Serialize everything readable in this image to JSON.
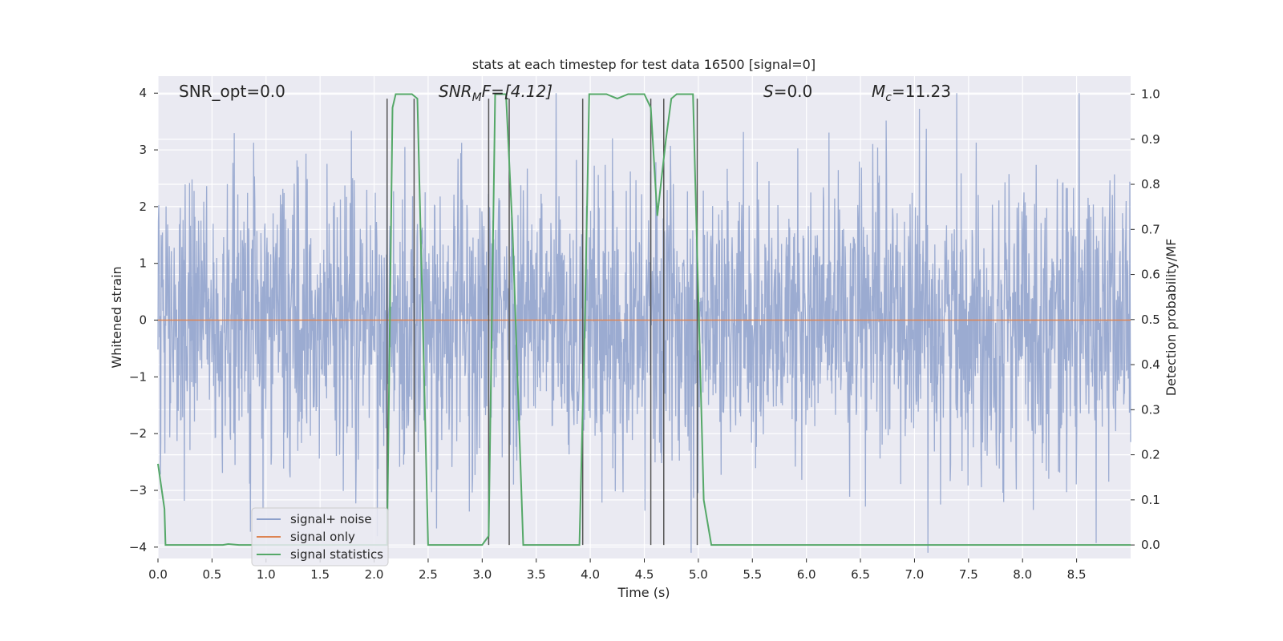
{
  "chart_data": {
    "type": "line",
    "title": "stats at each timestep for test data 16500 [signal=0]",
    "xlabel": "Time (s)",
    "ylabel_left": "Whitened strain",
    "ylabel_right": "Detection probability/MF",
    "xlim": [
      0.0,
      9.0
    ],
    "ylim_left": [
      -4.2,
      4.3
    ],
    "ylim_right": [
      -0.03,
      1.04
    ],
    "x_ticks": [
      "0.0",
      "0.5",
      "1.0",
      "1.5",
      "2.0",
      "2.5",
      "3.0",
      "3.5",
      "4.0",
      "4.5",
      "5.0",
      "5.5",
      "6.0",
      "6.5",
      "7.0",
      "7.5",
      "8.0",
      "8.5"
    ],
    "y_ticks_left": [
      "4",
      "3",
      "2",
      "1",
      "0",
      "−1",
      "−2",
      "−3",
      "−4"
    ],
    "y_ticks_right": [
      "1.0",
      "0.9",
      "0.8",
      "0.7",
      "0.6",
      "0.5",
      "0.4",
      "0.3",
      "0.2",
      "0.1",
      "0.0"
    ],
    "grid": true,
    "legend_position": "lower-left",
    "annotations": {
      "snr_opt": "SNR_opt=0.0",
      "snr_mf_base": "SNR",
      "snr_mf_sub": "M",
      "snr_mf_rest": "F=[4.12]",
      "s_symbol": "S",
      "s_rest": "=0.0",
      "mc_base": "M",
      "mc_sub": "c",
      "mc_rest": "=11.23"
    },
    "series": [
      {
        "name": "signal+ noise",
        "color": "#8da0cb",
        "description_values": "noise band approx between -2.0 and 2.0 with spikes up to about ±4"
      },
      {
        "name": "signal only",
        "color": "#dd8452",
        "values_constant": 0.0
      },
      {
        "name": "signal statistics",
        "color": "#55a868",
        "axis": "right",
        "points": [
          [
            0.0,
            0.18
          ],
          [
            0.06,
            0.08
          ],
          [
            0.07,
            0.0
          ],
          [
            0.13,
            0.0
          ],
          [
            0.6,
            0.0
          ],
          [
            0.65,
            0.002
          ],
          [
            0.75,
            0.0
          ],
          [
            2.12,
            0.0
          ],
          [
            2.17,
            0.97
          ],
          [
            2.2,
            1.0
          ],
          [
            2.35,
            1.0
          ],
          [
            2.4,
            0.99
          ],
          [
            2.45,
            0.5
          ],
          [
            2.5,
            0.0
          ],
          [
            3.0,
            0.0
          ],
          [
            3.06,
            0.02
          ],
          [
            3.12,
            1.0
          ],
          [
            3.22,
            1.0
          ],
          [
            3.28,
            0.7
          ],
          [
            3.38,
            0.0
          ],
          [
            3.9,
            0.0
          ],
          [
            3.95,
            0.5
          ],
          [
            3.99,
            1.0
          ],
          [
            4.15,
            1.0
          ],
          [
            4.25,
            0.99
          ],
          [
            4.35,
            1.0
          ],
          [
            4.5,
            1.0
          ],
          [
            4.56,
            0.97
          ],
          [
            4.62,
            0.73
          ],
          [
            4.7,
            0.9
          ],
          [
            4.75,
            0.99
          ],
          [
            4.8,
            1.0
          ],
          [
            4.95,
            1.0
          ],
          [
            5.05,
            0.1
          ],
          [
            5.12,
            0.0
          ],
          [
            9.0,
            0.0
          ]
        ]
      }
    ],
    "vertical_markers_x": [
      2.12,
      2.37,
      3.06,
      3.25,
      3.93,
      4.56,
      4.68,
      4.99
    ]
  },
  "legend": {
    "items": [
      {
        "label": "signal+ noise",
        "color": "#8da0cb"
      },
      {
        "label": "signal only",
        "color": "#dd8452"
      },
      {
        "label": "signal statistics",
        "color": "#55a868"
      }
    ]
  }
}
